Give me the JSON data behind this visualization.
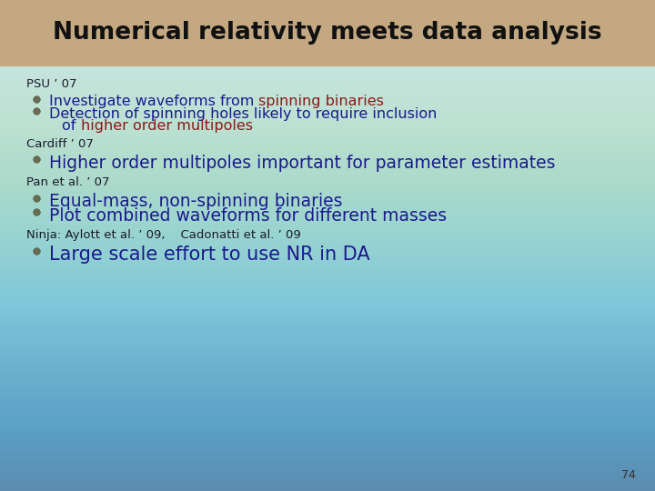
{
  "title": "Numerical relativity meets data analysis",
  "title_bg": "#c4a882",
  "slide_bg": "#aed8e0",
  "title_color": "#111111",
  "title_fontsize": 19,
  "page_number": "74",
  "sections": [
    {
      "label": "PSU ’ 07",
      "label_color": "#1a1a2e",
      "label_size": 9.5,
      "bullets": [
        {
          "lines": [
            {
              "text": "Investigate waveforms from ",
              "color": "#1a1a8c"
            },
            {
              "text": "spinning binaries",
              "color": "#8b1a1a"
            }
          ],
          "continuation": []
        },
        {
          "lines": [
            {
              "text": "Detection of spinning holes likely to require inclusion",
              "color": "#1a1a8c"
            }
          ],
          "continuation": [
            {
              "text": "of ",
              "color": "#1a1a8c"
            },
            {
              "text": "higher order multipoles",
              "color": "#8b1a1a"
            }
          ]
        }
      ],
      "bullet_size": 11.5
    },
    {
      "label": "Cardiff ’ 07",
      "label_color": "#1a1a2e",
      "label_size": 9.5,
      "bullets": [
        {
          "lines": [
            {
              "text": "Higher order multipoles important for parameter estimates",
              "color": "#1a1a8c"
            }
          ],
          "continuation": []
        }
      ],
      "bullet_size": 13.5
    },
    {
      "label": "Pan et al. ’ 07",
      "label_color": "#1a1a2e",
      "label_size": 9.5,
      "bullets": [
        {
          "lines": [
            {
              "text": "Equal-mass, non-spinning binaries",
              "color": "#1a1a8c"
            }
          ],
          "continuation": []
        },
        {
          "lines": [
            {
              "text": "Plot combined waveforms for different masses",
              "color": "#1a1a8c"
            }
          ],
          "continuation": []
        }
      ],
      "bullet_size": 13.5
    },
    {
      "label": "Ninja: Aylott et al. ’ 09,    Cadonatti et al. ’ 09",
      "label_color": "#1a1a2e",
      "label_size": 9.5,
      "bullets": [
        {
          "lines": [
            {
              "text": "Large scale effort to use NR in DA",
              "color": "#1a1a8c"
            }
          ],
          "continuation": []
        }
      ],
      "bullet_size": 15
    }
  ]
}
